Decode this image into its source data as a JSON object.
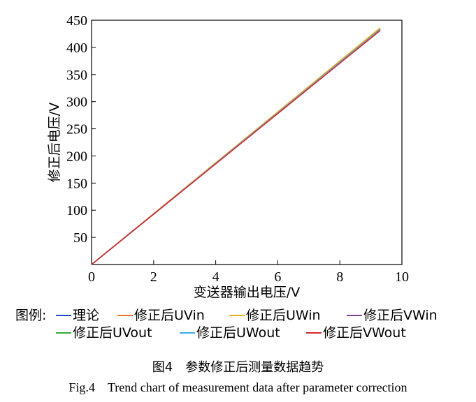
{
  "chart_data": {
    "type": "line",
    "title": "",
    "xlabel": "变送器输出电压/V",
    "ylabel": "修正后电压/V",
    "xlim": [
      0,
      10
    ],
    "ylim": [
      0,
      450
    ],
    "xticks": [
      0,
      2,
      4,
      6,
      8,
      10
    ],
    "yticks": [
      50,
      100,
      150,
      200,
      250,
      300,
      350,
      400,
      450
    ],
    "grid": false,
    "legend_prefix": "图例:",
    "legend_placement": "bottom",
    "series": [
      {
        "name": "理论",
        "color": "#1f4fbf",
        "x": [
          0,
          9.3
        ],
        "y": [
          0,
          432
        ]
      },
      {
        "name": "修正后UVin",
        "color": "#e8772e",
        "x": [
          0,
          9.3
        ],
        "y": [
          0,
          434
        ]
      },
      {
        "name": "修正后UWin",
        "color": "#f2b01e",
        "x": [
          0,
          9.3
        ],
        "y": [
          0,
          436
        ]
      },
      {
        "name": "修正后VWin",
        "color": "#7e3f98",
        "x": [
          0,
          9.3
        ],
        "y": [
          0,
          433
        ]
      },
      {
        "name": "修正后UVout",
        "color": "#3aa935",
        "x": [
          0,
          9.3
        ],
        "y": [
          0,
          432
        ]
      },
      {
        "name": "修正后UWout",
        "color": "#3ab0e6",
        "x": [
          0,
          9.3
        ],
        "y": [
          0,
          433
        ]
      },
      {
        "name": "修正后VWout",
        "color": "#d9282f",
        "x": [
          0,
          9.3
        ],
        "y": [
          0,
          431
        ]
      }
    ]
  },
  "caption": {
    "cn": "图4　参数修正后测量数据趋势",
    "en": "Fig.4　Trend chart of measurement data after parameter correction"
  }
}
